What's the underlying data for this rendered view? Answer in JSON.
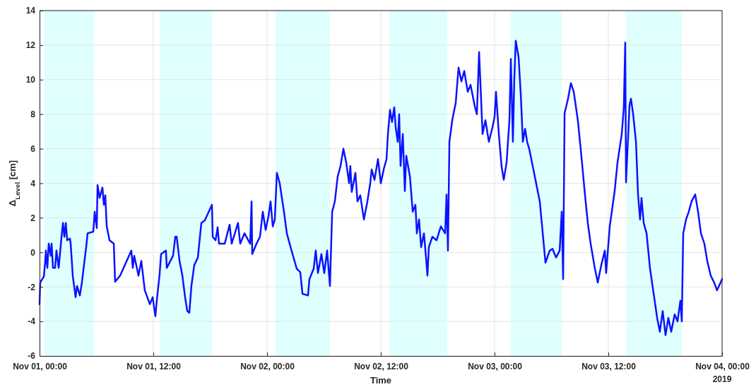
{
  "chart_data": {
    "type": "line",
    "xlabel": "Time",
    "ylabel": "Δ$_{Level}$ [cm]",
    "xlim": [
      "2019-11-01T00:00",
      "2019-11-04T00:00"
    ],
    "xticks": [
      {
        "value": "2019-11-01T00:00",
        "label": "Nov 01, 00:00"
      },
      {
        "value": "2019-11-01T12:00",
        "label": "Nov 01, 12:00"
      },
      {
        "value": "2019-11-02T00:00",
        "label": "Nov 02, 00:00"
      },
      {
        "value": "2019-11-02T12:00",
        "label": "Nov 02, 12:00"
      },
      {
        "value": "2019-11-03T00:00",
        "label": "Nov 03, 00:00"
      },
      {
        "value": "2019-11-03T12:00",
        "label": "Nov 03, 12:00"
      },
      {
        "value": "2019-11-04T00:00",
        "label": "Nov 04, 00:00"
      }
    ],
    "ylim": [
      -6,
      14
    ],
    "yticks": [
      -6,
      -4,
      -2,
      0,
      2,
      4,
      6,
      8,
      10,
      12,
      14
    ],
    "grid": true,
    "line_style": "solid",
    "marker": "none",
    "annotations": [
      "2019"
    ],
    "bands": [
      {
        "axis": "x",
        "from": "2019-11-01T00:31",
        "to": "2019-11-01T05:44",
        "color": "#e0ffff"
      },
      {
        "axis": "x",
        "from": "2019-11-01T12:40",
        "to": "2019-11-01T18:11",
        "color": "#e0ffff"
      },
      {
        "axis": "x",
        "from": "2019-11-02T00:54",
        "to": "2019-11-02T06:38",
        "color": "#e0ffff"
      },
      {
        "axis": "x",
        "from": "2019-11-02T12:54",
        "to": "2019-11-02T19:00",
        "color": "#e0ffff"
      },
      {
        "axis": "x",
        "from": "2019-11-03T01:42",
        "to": "2019-11-03T07:06",
        "color": "#e0ffff"
      },
      {
        "axis": "x",
        "from": "2019-11-03T13:54",
        "to": "2019-11-03T19:45",
        "color": "#e0ffff"
      }
    ],
    "series": [
      {
        "color": "#0a14ff",
        "x": [
          "2019-11-01T00:00",
          "2019-11-01T00:04",
          "2019-11-01T00:27",
          "2019-11-01T00:36",
          "2019-11-01T00:40",
          "2019-11-01T00:49",
          "2019-11-01T00:58",
          "2019-11-01T01:11",
          "2019-11-01T01:16",
          "2019-11-01T01:25",
          "2019-11-01T01:38",
          "2019-11-01T01:47",
          "2019-11-01T02:01",
          "2019-11-01T02:19",
          "2019-11-01T02:28",
          "2019-11-01T02:37",
          "2019-11-01T02:46",
          "2019-11-01T02:55",
          "2019-11-01T03:12",
          "2019-11-01T03:17",
          "2019-11-01T03:30",
          "2019-11-01T03:48",
          "2019-11-01T03:57",
          "2019-11-01T04:15",
          "2019-11-01T04:28",
          "2019-11-01T04:37",
          "2019-11-01T04:55",
          "2019-11-01T05:04",
          "2019-11-01T05:40",
          "2019-11-01T05:49",
          "2019-11-01T06:02",
          "2019-11-01T06:07",
          "2019-11-01T06:20",
          "2019-11-01T06:38",
          "2019-11-01T06:47",
          "2019-11-01T06:56",
          "2019-11-01T07:05",
          "2019-11-01T07:23",
          "2019-11-01T07:50",
          "2019-11-01T07:58",
          "2019-11-01T08:30",
          "2019-11-01T09:41",
          "2019-11-01T09:50",
          "2019-11-01T09:59",
          "2019-11-01T10:17",
          "2019-11-01T10:26",
          "2019-11-01T10:44",
          "2019-11-01T11:06",
          "2019-11-01T11:38",
          "2019-11-01T11:56",
          "2019-11-01T12:13",
          "2019-11-01T12:22",
          "2019-11-01T12:40",
          "2019-11-01T12:49",
          "2019-11-01T13:20",
          "2019-11-01T13:25",
          "2019-11-01T14:05",
          "2019-11-01T14:19",
          "2019-11-01T14:28",
          "2019-11-01T14:46",
          "2019-11-01T15:04",
          "2019-11-01T15:21",
          "2019-11-01T15:35",
          "2019-11-01T15:48",
          "2019-11-01T16:01",
          "2019-11-01T16:19",
          "2019-11-01T16:42",
          "2019-11-01T16:55",
          "2019-11-01T17:04",
          "2019-11-01T17:26",
          "2019-11-01T18:11",
          "2019-11-01T18:16",
          "2019-11-01T18:34",
          "2019-11-01T18:47",
          "2019-11-01T18:56",
          "2019-11-01T19:32",
          "2019-11-01T20:03",
          "2019-11-01T20:16",
          "2019-11-01T20:56",
          "2019-11-01T21:10",
          "2019-11-01T21:37",
          "2019-11-01T22:13",
          "2019-11-01T22:22",
          "2019-11-01T22:26",
          "2019-11-01T22:53",
          "2019-11-01T23:15",
          "2019-11-01T23:33",
          "2019-11-01T23:51",
          "2019-11-02T00:09",
          "2019-11-02T00:22",
          "2019-11-02T00:36",
          "2019-11-02T00:49",
          "2019-11-02T01:02",
          "2019-11-02T01:20",
          "2019-11-02T01:47",
          "2019-11-02T02:05",
          "2019-11-02T02:23",
          "2019-11-02T02:41",
          "2019-11-02T03:08",
          "2019-11-02T03:30",
          "2019-11-02T03:44",
          "2019-11-02T04:19",
          "2019-11-02T04:28",
          "2019-11-02T04:55",
          "2019-11-02T05:08",
          "2019-11-02T05:22",
          "2019-11-02T05:44",
          "2019-11-02T06:02",
          "2019-11-02T06:20",
          "2019-11-02T06:38",
          "2019-11-02T06:52",
          "2019-11-02T07:09",
          "2019-11-02T07:27",
          "2019-11-02T07:45",
          "2019-11-02T08:03",
          "2019-11-02T08:21",
          "2019-11-02T08:39",
          "2019-11-02T08:47",
          "2019-11-02T08:56",
          "2019-11-02T09:19",
          "2019-11-02T09:32",
          "2019-11-02T09:50",
          "2019-11-02T10:13",
          "2019-11-02T10:35",
          "2019-11-02T10:53",
          "2019-11-02T11:02",
          "2019-11-02T11:20",
          "2019-11-02T11:42",
          "2019-11-02T12:00",
          "2019-11-02T12:18",
          "2019-11-02T12:36",
          "2019-11-02T12:45",
          "2019-11-02T12:58",
          "2019-11-02T13:11",
          "2019-11-02T13:25",
          "2019-11-02T13:34",
          "2019-11-02T13:47",
          "2019-11-02T13:56",
          "2019-11-02T14:05",
          "2019-11-02T14:19",
          "2019-11-02T14:32",
          "2019-11-02T14:41",
          "2019-11-02T15:04",
          "2019-11-02T15:22",
          "2019-11-02T15:39",
          "2019-11-02T15:48",
          "2019-11-02T16:02",
          "2019-11-02T16:15",
          "2019-11-02T16:33",
          "2019-11-02T16:46",
          "2019-11-02T16:55",
          "2019-11-02T17:04",
          "2019-11-02T17:26",
          "2019-11-02T17:53",
          "2019-11-02T18:20",
          "2019-11-02T18:47",
          "2019-11-02T18:56",
          "2019-11-02T19:05",
          "2019-11-02T19:14",
          "2019-11-02T19:32",
          "2019-11-02T19:54",
          "2019-11-02T20:12",
          "2019-11-02T20:30",
          "2019-11-02T20:48",
          "2019-11-02T21:10",
          "2019-11-02T21:28",
          "2019-11-02T21:55",
          "2019-11-02T22:08",
          "2019-11-02T22:22",
          "2019-11-02T22:44",
          "2019-11-02T23:02",
          "2019-11-02T23:24",
          "2019-11-02T23:47",
          "2019-11-03T00:00",
          "2019-11-03T00:09",
          "2019-11-03T00:27",
          "2019-11-03T00:44",
          "2019-11-03T00:58",
          "2019-11-03T01:16",
          "2019-11-03T01:34",
          "2019-11-03T01:43",
          "2019-11-03T01:56",
          "2019-11-03T02:05",
          "2019-11-03T02:14",
          "2019-11-03T02:32",
          "2019-11-03T02:46",
          "2019-11-03T02:59",
          "2019-11-03T03:13",
          "2019-11-03T03:26",
          "2019-11-03T03:39",
          "2019-11-03T03:57",
          "2019-11-03T04:46",
          "2019-11-03T05:22",
          "2019-11-03T05:49",
          "2019-11-03T06:07",
          "2019-11-03T06:29",
          "2019-11-03T06:52",
          "2019-11-03T07:05",
          "2019-11-03T07:14",
          "2019-11-03T07:23",
          "2019-11-03T07:45",
          "2019-11-03T08:03",
          "2019-11-03T08:21",
          "2019-11-03T08:47",
          "2019-11-03T09:05",
          "2019-11-03T09:32",
          "2019-11-03T09:50",
          "2019-11-03T10:08",
          "2019-11-03T10:35",
          "2019-11-03T10:53",
          "2019-11-03T11:15",
          "2019-11-03T11:38",
          "2019-11-03T11:46",
          "2019-11-03T12:09",
          "2019-11-03T12:40",
          "2019-11-03T12:58",
          "2019-11-03T13:25",
          "2019-11-03T13:38",
          "2019-11-03T13:47",
          "2019-11-03T13:52",
          "2019-11-03T14:14",
          "2019-11-03T14:23",
          "2019-11-03T14:37",
          "2019-11-03T14:55",
          "2019-11-03T15:08",
          "2019-11-03T15:21",
          "2019-11-03T15:30",
          "2019-11-03T15:44",
          "2019-11-03T16:02",
          "2019-11-03T16:24",
          "2019-11-03T17:09",
          "2019-11-03T17:26",
          "2019-11-03T17:44",
          "2019-11-03T18:02",
          "2019-11-03T18:20",
          "2019-11-03T18:38",
          "2019-11-03T19:00",
          "2019-11-03T19:18",
          "2019-11-03T19:36",
          "2019-11-03T19:45",
          "2019-11-03T19:54",
          "2019-11-03T20:12",
          "2019-11-03T20:29",
          "2019-11-03T20:47",
          "2019-11-03T21:10",
          "2019-11-03T21:28",
          "2019-11-03T21:46",
          "2019-11-03T22:08",
          "2019-11-03T22:26",
          "2019-11-03T22:48",
          "2019-11-03T23:10",
          "2019-11-03T23:28",
          "2019-11-04T00:00"
        ],
        "values": [
          -3.0,
          -1.75,
          -1.4,
          -0.5,
          0.1,
          -0.9,
          0.5,
          -0.2,
          0.5,
          -0.9,
          -0.9,
          0.1,
          -0.9,
          0.9,
          1.7,
          0.9,
          1.7,
          0.7,
          0.8,
          0.5,
          -1.35,
          -2.6,
          -1.95,
          -2.5,
          -1.75,
          -1.05,
          0.3,
          1.1,
          1.2,
          2.35,
          1.4,
          3.9,
          3.15,
          3.75,
          2.75,
          3.3,
          1.5,
          0.7,
          0.5,
          -1.7,
          -1.35,
          0.1,
          -0.9,
          -0.2,
          -0.95,
          -1.35,
          -0.5,
          -2.2,
          -3.0,
          -2.6,
          -3.7,
          -2.8,
          -1.25,
          -0.1,
          0.1,
          -0.9,
          -0.2,
          0.9,
          0.9,
          -0.5,
          -1.35,
          -2.6,
          -3.4,
          -3.5,
          -1.95,
          -0.75,
          -0.3,
          0.9,
          1.7,
          1.85,
          2.75,
          0.9,
          0.7,
          1.45,
          0.5,
          0.5,
          1.6,
          0.5,
          1.7,
          0.5,
          1.1,
          0.5,
          2.95,
          -0.1,
          0.5,
          0.9,
          2.35,
          1.3,
          2.1,
          2.95,
          1.5,
          1.9,
          4.6,
          4.0,
          2.35,
          1.1,
          0.5,
          -0.1,
          -0.95,
          -1.15,
          -2.4,
          -2.5,
          -1.55,
          -0.95,
          0.1,
          -1.2,
          -0.1,
          -1.2,
          0.1,
          -1.95,
          2.35,
          2.95,
          4.4,
          5.0,
          6.0,
          5.2,
          4.0,
          5.0,
          3.5,
          4.6,
          2.95,
          3.3,
          1.9,
          2.95,
          4.0,
          4.8,
          4.2,
          5.4,
          4.0,
          4.8,
          5.4,
          6.85,
          8.25,
          7.55,
          8.4,
          7.25,
          6.4,
          8.0,
          5.0,
          6.85,
          3.55,
          5.6,
          4.4,
          2.35,
          2.75,
          1.1,
          1.9,
          0.3,
          1.1,
          -0.3,
          -1.35,
          0.3,
          0.9,
          0.7,
          1.5,
          1.1,
          3.35,
          0.1,
          6.4,
          7.65,
          8.65,
          10.7,
          9.9,
          10.5,
          9.3,
          9.7,
          8.45,
          8.0,
          11.6,
          6.85,
          7.65,
          6.4,
          7.25,
          7.85,
          9.3,
          6.85,
          5.0,
          4.2,
          5.2,
          7.65,
          11.2,
          6.4,
          10.1,
          12.25,
          11.3,
          9.1,
          6.4,
          7.15,
          6.4,
          6.0,
          5.2,
          2.95,
          -0.6,
          0.1,
          0.2,
          -0.3,
          0.1,
          2.35,
          -1.55,
          8.05,
          8.9,
          9.8,
          9.3,
          7.65,
          6.0,
          3.35,
          1.7,
          0.5,
          -0.95,
          -1.75,
          -0.75,
          0.1,
          -1.2,
          1.5,
          3.55,
          5.2,
          6.85,
          8.4,
          12.15,
          4.05,
          8.5,
          8.9,
          8.0,
          6.4,
          3.35,
          1.9,
          3.15,
          1.7,
          1.1,
          -0.95,
          -3.8,
          -4.6,
          -3.4,
          -4.8,
          -3.8,
          -4.6,
          -3.6,
          -4.0,
          -2.8,
          -4.0,
          1.1,
          1.9,
          2.35,
          2.95,
          3.35,
          2.35,
          1.1,
          0.5,
          -0.5,
          -1.35,
          -1.75,
          -2.2,
          -1.55
        ]
      }
    ]
  }
}
